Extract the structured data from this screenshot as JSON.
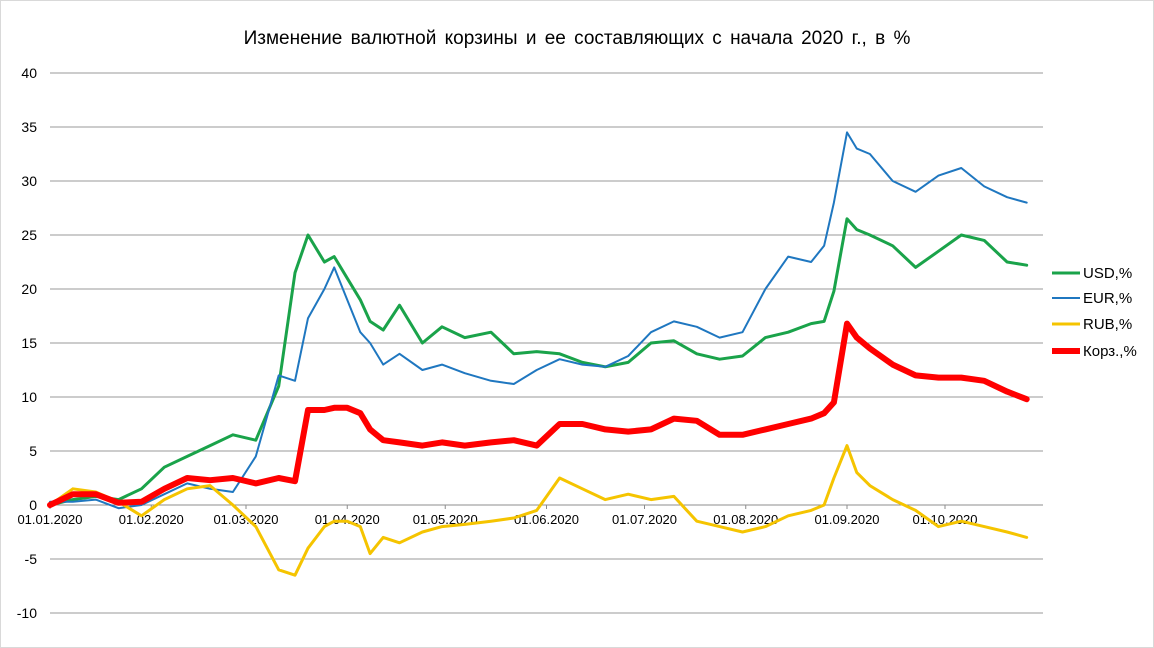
{
  "chart_data": {
    "type": "line",
    "title": "Изменение валютной корзины и ее составляющих с начала 2020 г., в %",
    "xlabel": "",
    "ylabel": "",
    "ylim": [
      -10,
      40
    ],
    "yticks": [
      "40",
      "35",
      "30",
      "25",
      "20",
      "15",
      "10",
      "5",
      "0",
      "-5",
      "-10"
    ],
    "x_ticks": [
      "01.01.2020",
      "01.02.2020",
      "01.03.2020",
      "01.04.2020",
      "01.05.2020",
      "01.06.2020",
      "01.07.2020",
      "01.08.2020",
      "01.09.2020",
      "01.10.2020"
    ],
    "x_dates": [
      "01.01.2020",
      "08.01.2020",
      "15.01.2020",
      "22.01.2020",
      "29.01.2020",
      "05.02.2020",
      "12.02.2020",
      "19.02.2020",
      "26.02.2020",
      "04.03.2020",
      "11.03.2020",
      "16.03.2020",
      "20.03.2020",
      "25.03.2020",
      "28.03.2020",
      "01.04.2020",
      "05.04.2020",
      "08.04.2020",
      "12.04.2020",
      "17.04.2020",
      "24.04.2020",
      "30.04.2020",
      "07.05.2020",
      "15.05.2020",
      "22.05.2020",
      "29.05.2020",
      "05.06.2020",
      "12.06.2020",
      "19.06.2020",
      "26.06.2020",
      "03.07.2020",
      "10.07.2020",
      "17.07.2020",
      "24.07.2020",
      "31.07.2020",
      "07.08.2020",
      "14.08.2020",
      "21.08.2020",
      "25.08.2020",
      "28.08.2020",
      "01.09.2020",
      "04.09.2020",
      "08.09.2020",
      "15.09.2020",
      "22.09.2020",
      "29.09.2020",
      "06.10.2020",
      "13.10.2020",
      "20.10.2020",
      "26.10.2020"
    ],
    "grid": true,
    "legend_position": "right",
    "series": [
      {
        "name": "USD,%",
        "color": "#1aa34a",
        "values": [
          0.0,
          0.5,
          0.8,
          0.5,
          1.5,
          3.5,
          4.5,
          5.5,
          6.5,
          6.0,
          11.0,
          21.5,
          25.0,
          22.5,
          23.0,
          21.0,
          19.0,
          17.0,
          16.2,
          18.5,
          15.0,
          16.5,
          15.5,
          16.0,
          14.0,
          14.2,
          14.0,
          13.2,
          12.8,
          13.2,
          15.0,
          15.2,
          14.0,
          13.5,
          13.8,
          15.5,
          16.0,
          16.8,
          17.0,
          19.8,
          26.5,
          25.5,
          25.0,
          24.0,
          22.0,
          23.5,
          25.0,
          24.5,
          22.5,
          22.2
        ]
      },
      {
        "name": "EUR,%",
        "color": "#1f77c0",
        "values": [
          0.3,
          0.3,
          0.5,
          -0.3,
          0.0,
          1.0,
          2.0,
          1.5,
          1.2,
          4.5,
          12.0,
          11.5,
          17.3,
          20.0,
          22.0,
          19.0,
          16.0,
          15.0,
          13.0,
          14.0,
          12.5,
          13.0,
          12.2,
          11.5,
          11.2,
          12.5,
          13.5,
          13.0,
          12.8,
          13.8,
          16.0,
          17.0,
          16.5,
          15.5,
          16.0,
          20.0,
          23.0,
          22.5,
          24.0,
          28.0,
          34.5,
          33.0,
          32.5,
          30.0,
          29.0,
          30.5,
          31.2,
          29.5,
          28.5,
          28.0
        ]
      },
      {
        "name": "RUB,%",
        "color": "#f5c400",
        "values": [
          0.0,
          1.5,
          1.2,
          0.3,
          -1.0,
          0.5,
          1.5,
          1.8,
          0.0,
          -2.0,
          -6.0,
          -6.5,
          -4.0,
          -2.0,
          -1.5,
          -1.5,
          -2.0,
          -4.5,
          -3.0,
          -3.5,
          -2.5,
          -2.0,
          -1.8,
          -1.5,
          -1.2,
          -0.5,
          2.5,
          1.5,
          0.5,
          1.0,
          0.5,
          0.8,
          -1.5,
          -2.0,
          -2.5,
          -2.0,
          -1.0,
          -0.5,
          0.0,
          2.5,
          5.5,
          3.0,
          1.8,
          0.5,
          -0.5,
          -2.0,
          -1.5,
          -2.0,
          -2.5,
          -3.0
        ]
      },
      {
        "name": "Корз.,%",
        "color": "#ff0000",
        "values": [
          0.0,
          1.0,
          1.0,
          0.2,
          0.3,
          1.5,
          2.5,
          2.3,
          2.5,
          2.0,
          2.5,
          2.2,
          8.8,
          8.8,
          9.0,
          9.0,
          8.5,
          7.0,
          6.0,
          5.8,
          5.5,
          5.8,
          5.5,
          5.8,
          6.0,
          5.5,
          7.5,
          7.5,
          7.0,
          6.8,
          7.0,
          8.0,
          7.8,
          6.5,
          6.5,
          7.0,
          7.5,
          8.0,
          8.5,
          9.5,
          16.8,
          15.5,
          14.5,
          13.0,
          12.0,
          11.8,
          11.8,
          11.5,
          10.5,
          9.8
        ]
      }
    ]
  }
}
